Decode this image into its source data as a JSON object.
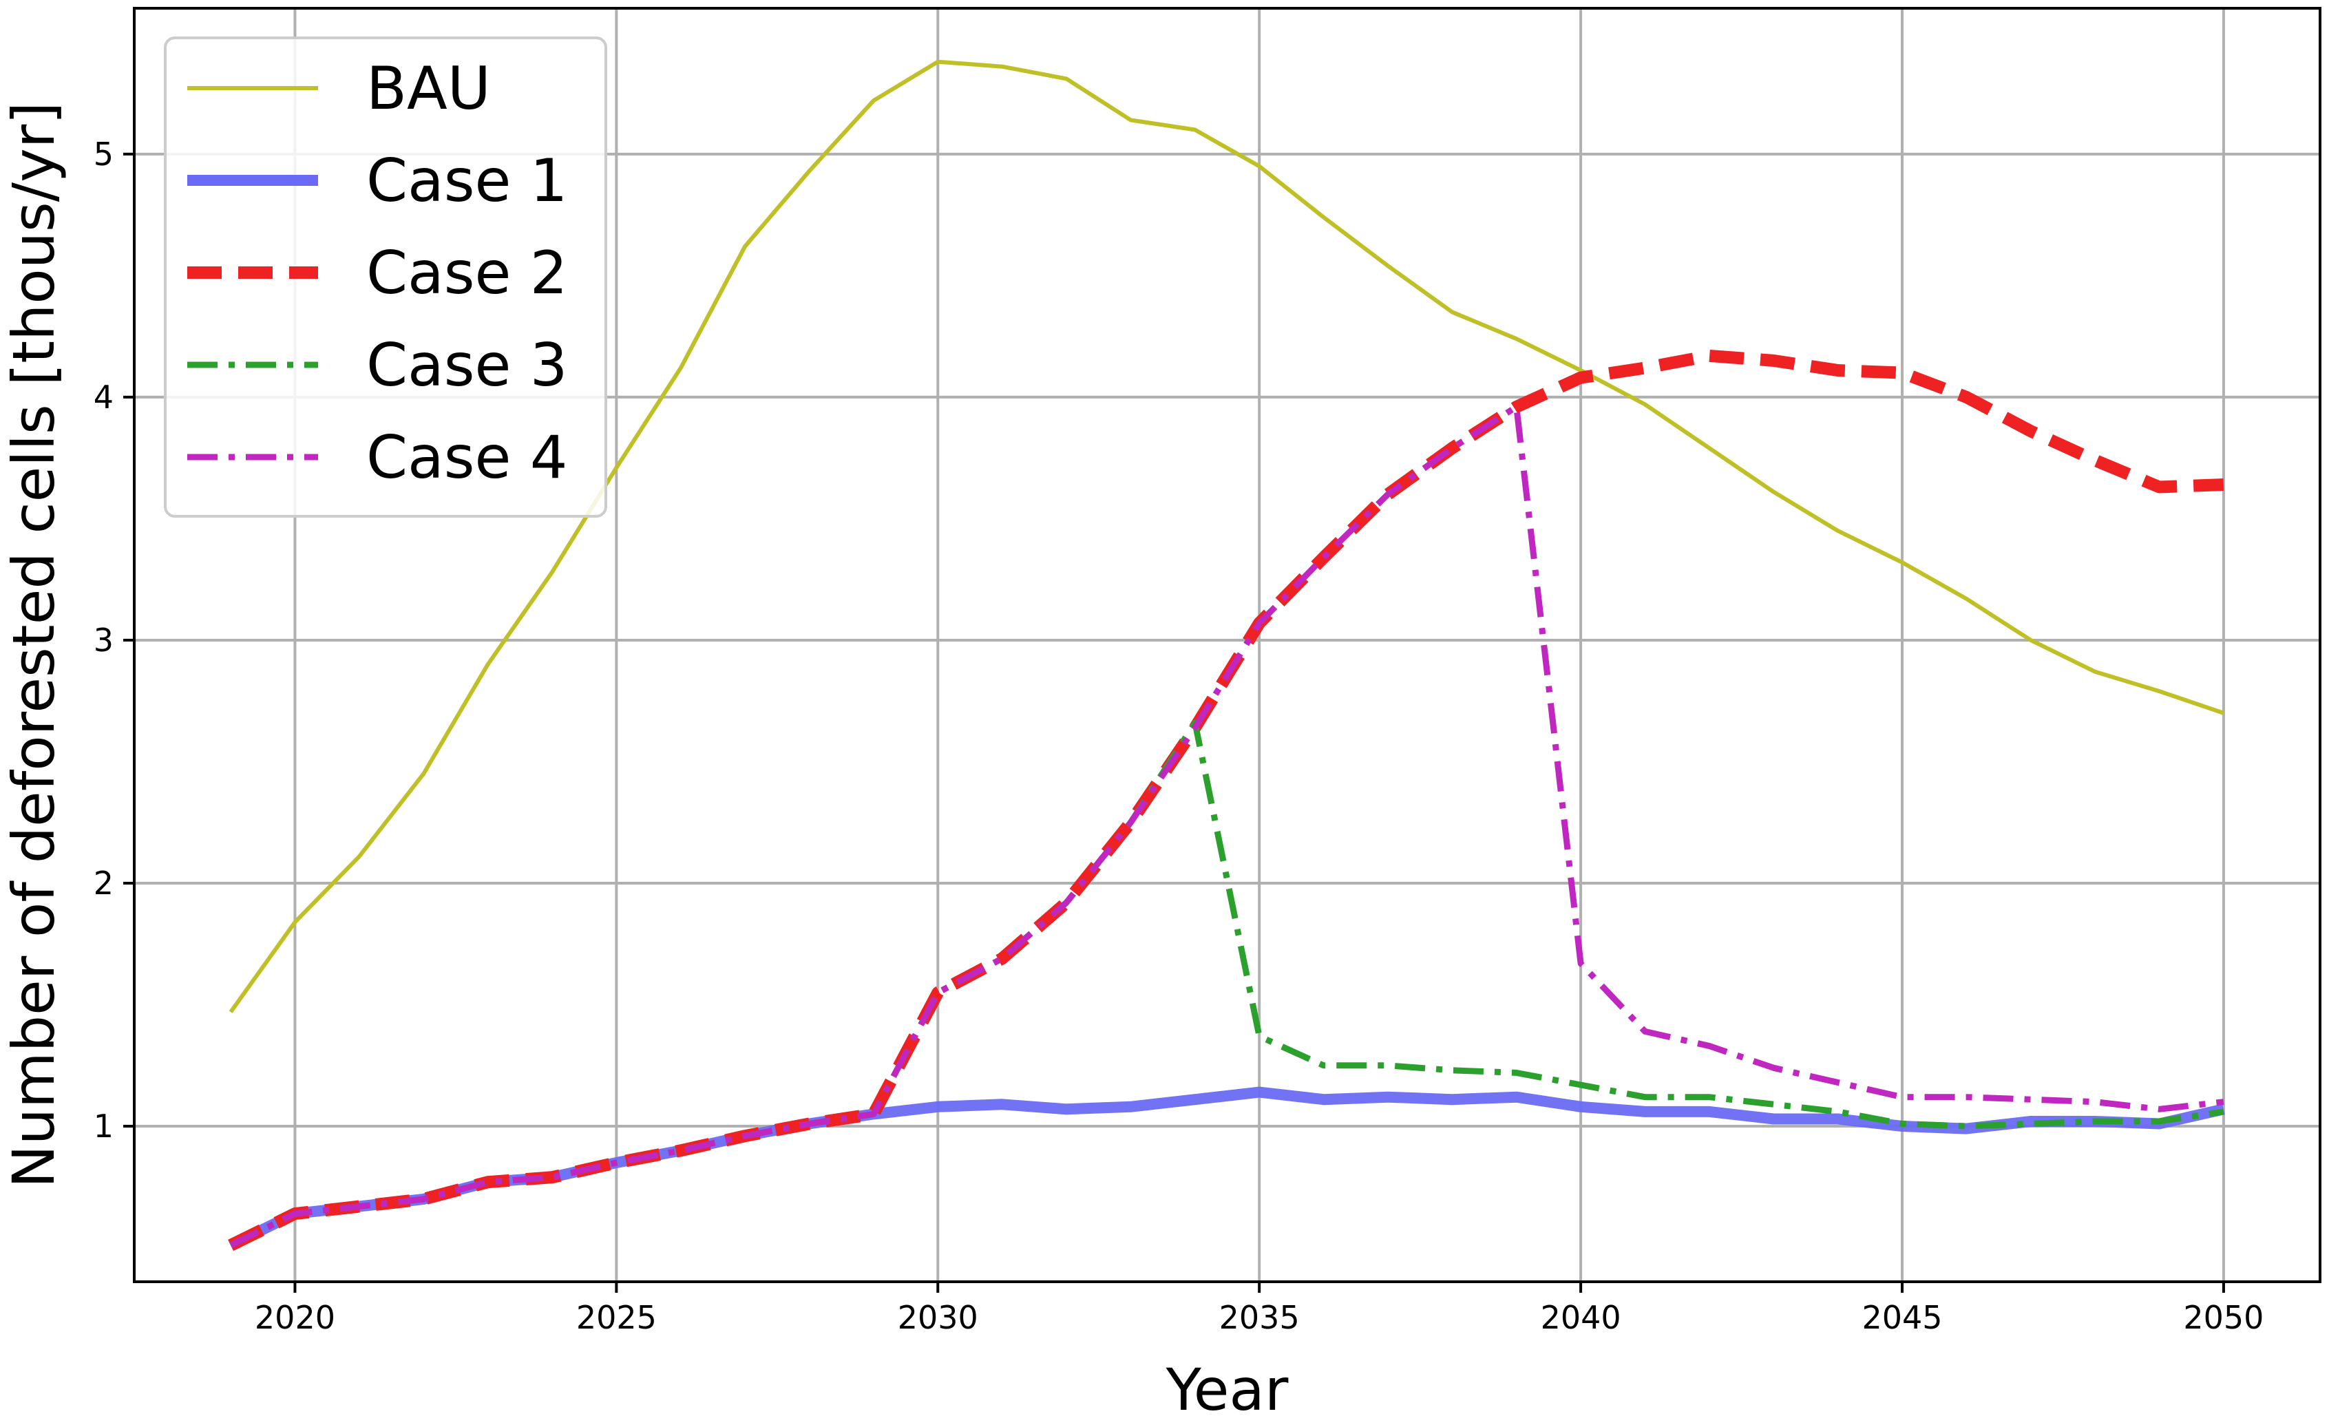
{
  "chart_data": {
    "type": "line",
    "title": "",
    "xlabel": "Year",
    "ylabel": "Number of deforested cells [thous/yr]",
    "xlim": [
      2017.5,
      2051.5
    ],
    "ylim": [
      0.36,
      5.6
    ],
    "xticks": [
      2020,
      2025,
      2030,
      2035,
      2040,
      2045,
      2050
    ],
    "xtick_labels": [
      "2020",
      "2025",
      "2030",
      "2035",
      "2040",
      "2045",
      "2050"
    ],
    "yticks": [
      1,
      2,
      3,
      4,
      5
    ],
    "ytick_labels": [
      "1",
      "2",
      "3",
      "4",
      "5"
    ],
    "grid": true,
    "legend_position": "top-left",
    "x": [
      2019,
      2020,
      2021,
      2022,
      2023,
      2024,
      2025,
      2026,
      2027,
      2028,
      2029,
      2030,
      2031,
      2032,
      2033,
      2034,
      2035,
      2036,
      2037,
      2038,
      2039,
      2040,
      2041,
      2042,
      2043,
      2044,
      2045,
      2046,
      2047,
      2048,
      2049,
      2050
    ],
    "series": [
      {
        "name": "BAU",
        "color": "#bfbf26",
        "style": "solid",
        "values": [
          1.47,
          1.84,
          2.11,
          2.45,
          2.9,
          3.28,
          3.71,
          4.12,
          4.62,
          4.93,
          5.22,
          5.38,
          5.36,
          5.31,
          5.14,
          5.1,
          4.95,
          4.74,
          4.54,
          4.35,
          4.24,
          4.11,
          3.97,
          3.79,
          3.61,
          3.45,
          3.32,
          3.17,
          3.0,
          2.87,
          2.79,
          2.7
        ]
      },
      {
        "name": "Case 1",
        "color": "#6a6af4",
        "style": "solid-thick",
        "values": [
          0.51,
          0.64,
          0.67,
          0.7,
          0.77,
          0.79,
          0.85,
          0.9,
          0.96,
          1.01,
          1.05,
          1.08,
          1.09,
          1.07,
          1.08,
          1.11,
          1.14,
          1.11,
          1.12,
          1.11,
          1.12,
          1.08,
          1.06,
          1.06,
          1.03,
          1.03,
          1.0,
          0.99,
          1.02,
          1.02,
          1.01,
          1.07
        ]
      },
      {
        "name": "Case 2",
        "color": "#ee2222",
        "style": "dashed",
        "values": [
          0.51,
          0.64,
          0.67,
          0.7,
          0.77,
          0.79,
          0.85,
          0.9,
          0.96,
          1.01,
          1.05,
          1.55,
          1.69,
          1.92,
          2.25,
          2.64,
          3.07,
          3.34,
          3.6,
          3.79,
          3.96,
          4.08,
          4.12,
          4.17,
          4.15,
          4.11,
          4.1,
          4.0,
          3.86,
          3.74,
          3.63,
          3.64
        ]
      },
      {
        "name": "Case 3",
        "color": "#2ca02c",
        "style": "dash-dot",
        "values": [
          0.51,
          0.64,
          0.67,
          0.7,
          0.77,
          0.79,
          0.85,
          0.9,
          0.96,
          1.01,
          1.05,
          1.55,
          1.69,
          1.92,
          2.25,
          2.66,
          1.37,
          1.25,
          1.25,
          1.23,
          1.22,
          1.17,
          1.12,
          1.12,
          1.09,
          1.06,
          1.01,
          1.0,
          1.01,
          1.02,
          1.02,
          1.06
        ]
      },
      {
        "name": "Case 4",
        "color": "#c027c0",
        "style": "dash-dot",
        "values": [
          0.51,
          0.64,
          0.67,
          0.7,
          0.77,
          0.79,
          0.85,
          0.9,
          0.96,
          1.01,
          1.05,
          1.55,
          1.69,
          1.92,
          2.25,
          2.64,
          3.07,
          3.34,
          3.6,
          3.79,
          3.96,
          1.67,
          1.39,
          1.33,
          1.24,
          1.18,
          1.12,
          1.12,
          1.11,
          1.1,
          1.07,
          1.1
        ]
      }
    ]
  }
}
